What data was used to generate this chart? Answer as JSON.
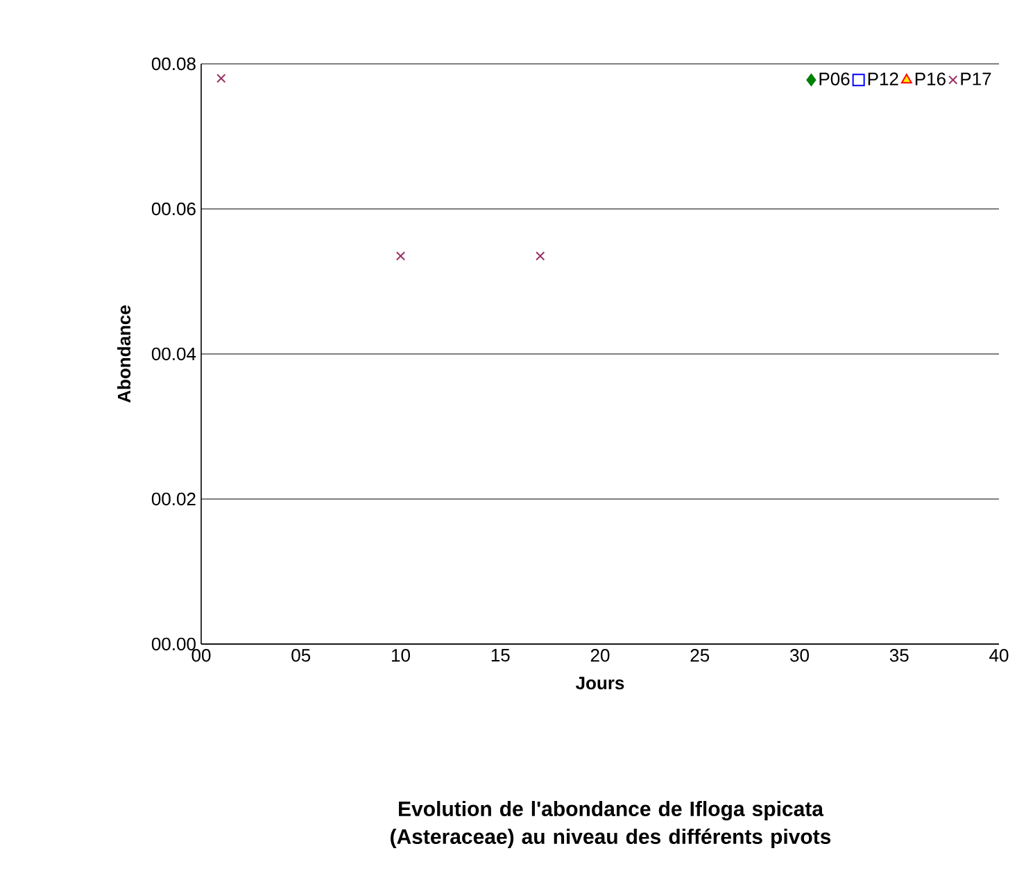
{
  "chart_data": {
    "type": "scatter",
    "title": "Evolution de l'abondance de Ifloga spicata (Asteraceae) au niveau des différents pivots",
    "xlabel": "Jours",
    "ylabel": "Abondance",
    "x": [
      1,
      10,
      17
    ],
    "series": [
      {
        "name": "P06",
        "color": "#008000",
        "marker": "diamond",
        "values": [
          null,
          null,
          null
        ]
      },
      {
        "name": "P12",
        "color": "#0000ff",
        "marker": "square",
        "values": [
          null,
          null,
          null
        ]
      },
      {
        "name": "P16",
        "color": "#ff0000",
        "marker": "triangle",
        "values": [
          null,
          null,
          null
        ]
      },
      {
        "name": "P17",
        "color": "#993366",
        "marker": "cross",
        "values": [
          0.078,
          0.0535,
          0.0535
        ]
      }
    ],
    "xlim": [
      0,
      40
    ],
    "ylim": [
      0,
      0.08
    ],
    "xticks": [
      {
        "value": 0,
        "label": "00"
      },
      {
        "value": 5,
        "label": "05"
      },
      {
        "value": 10,
        "label": "10"
      },
      {
        "value": 15,
        "label": "15"
      },
      {
        "value": 20,
        "label": "20"
      },
      {
        "value": 25,
        "label": "25"
      },
      {
        "value": 30,
        "label": "30"
      },
      {
        "value": 35,
        "label": "35"
      },
      {
        "value": 40,
        "label": "40"
      }
    ],
    "yticks": [
      {
        "value": 0,
        "label": "00.00"
      },
      {
        "value": 0.02,
        "label": "00.02"
      },
      {
        "value": 0.04,
        "label": "00.04"
      },
      {
        "value": 0.06,
        "label": "00.06"
      },
      {
        "value": 0.08,
        "label": "00.08"
      }
    ],
    "grid": "y",
    "legend": "top right"
  }
}
